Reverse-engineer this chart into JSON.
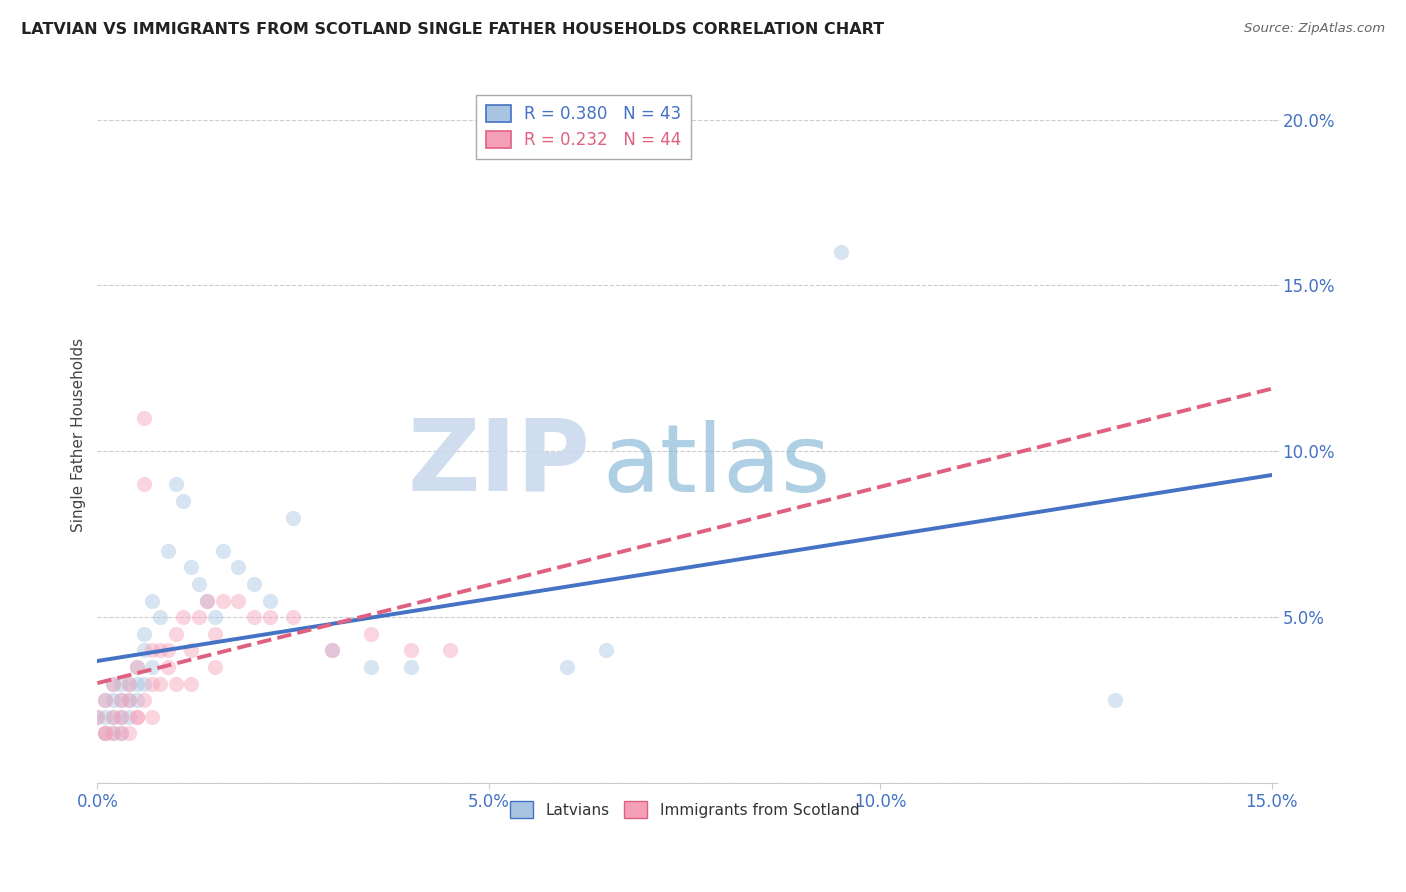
{
  "title": "LATVIAN VS IMMIGRANTS FROM SCOTLAND SINGLE FATHER HOUSEHOLDS CORRELATION CHART",
  "source": "Source: ZipAtlas.com",
  "ylabel": "Single Father Households",
  "watermark_zip": "ZIP",
  "watermark_atlas": "atlas",
  "series": [
    {
      "name": "Latvians",
      "R": 0.38,
      "N": 43,
      "color": "#a8c4e0",
      "line_color": "#4472c4",
      "line_style": "-",
      "x": [
        0.0,
        0.001,
        0.001,
        0.002,
        0.002,
        0.002,
        0.003,
        0.003,
        0.003,
        0.004,
        0.004,
        0.005,
        0.005,
        0.006,
        0.006,
        0.007,
        0.008,
        0.009,
        0.01,
        0.011,
        0.012,
        0.013,
        0.014,
        0.015,
        0.016,
        0.018,
        0.02,
        0.022,
        0.025,
        0.03,
        0.035,
        0.04,
        0.06,
        0.065,
        0.095,
        0.13,
        0.001,
        0.002,
        0.003,
        0.004,
        0.005,
        0.006,
        0.007
      ],
      "y": [
        0.02,
        0.02,
        0.025,
        0.015,
        0.025,
        0.03,
        0.02,
        0.025,
        0.03,
        0.02,
        0.03,
        0.025,
        0.035,
        0.03,
        0.04,
        0.035,
        0.05,
        0.07,
        0.09,
        0.085,
        0.065,
        0.06,
        0.055,
        0.05,
        0.07,
        0.065,
        0.06,
        0.055,
        0.08,
        0.04,
        0.035,
        0.035,
        0.035,
        0.04,
        0.16,
        0.025,
        0.015,
        0.02,
        0.015,
        0.025,
        0.03,
        0.045,
        0.055
      ]
    },
    {
      "name": "Immigrants from Scotland",
      "R": 0.232,
      "N": 44,
      "color": "#f4a0b8",
      "line_color": "#e06080",
      "line_style": "--",
      "x": [
        0.0,
        0.001,
        0.001,
        0.002,
        0.002,
        0.003,
        0.003,
        0.004,
        0.004,
        0.005,
        0.005,
        0.006,
        0.006,
        0.007,
        0.007,
        0.008,
        0.009,
        0.01,
        0.011,
        0.012,
        0.013,
        0.014,
        0.015,
        0.016,
        0.018,
        0.02,
        0.022,
        0.025,
        0.03,
        0.035,
        0.04,
        0.045,
        0.001,
        0.002,
        0.003,
        0.004,
        0.005,
        0.006,
        0.007,
        0.008,
        0.009,
        0.01,
        0.012,
        0.015
      ],
      "y": [
        0.02,
        0.015,
        0.025,
        0.02,
        0.03,
        0.02,
        0.025,
        0.025,
        0.03,
        0.02,
        0.035,
        0.09,
        0.11,
        0.03,
        0.04,
        0.04,
        0.04,
        0.045,
        0.05,
        0.04,
        0.05,
        0.055,
        0.045,
        0.055,
        0.055,
        0.05,
        0.05,
        0.05,
        0.04,
        0.045,
        0.04,
        0.04,
        0.015,
        0.015,
        0.015,
        0.015,
        0.02,
        0.025,
        0.02,
        0.03,
        0.035,
        0.03,
        0.03,
        0.035
      ]
    }
  ],
  "xlim": [
    0.0,
    0.15
  ],
  "ylim": [
    0.0,
    0.21
  ],
  "yticks": [
    0.0,
    0.05,
    0.1,
    0.15,
    0.2
  ],
  "ytick_labels": [
    "",
    "5.0%",
    "10.0%",
    "15.0%",
    "20.0%"
  ],
  "xticks": [
    0.0,
    0.05,
    0.1,
    0.15
  ],
  "xtick_labels": [
    "0.0%",
    "5.0%",
    "10.0%",
    "15.0%"
  ],
  "grid_color": "#cccccc",
  "bg_color": "#ffffff",
  "title_color": "#222222",
  "tick_color": "#4472c4",
  "marker_size": 120,
  "marker_alpha": 0.45,
  "line_width": 2.8
}
